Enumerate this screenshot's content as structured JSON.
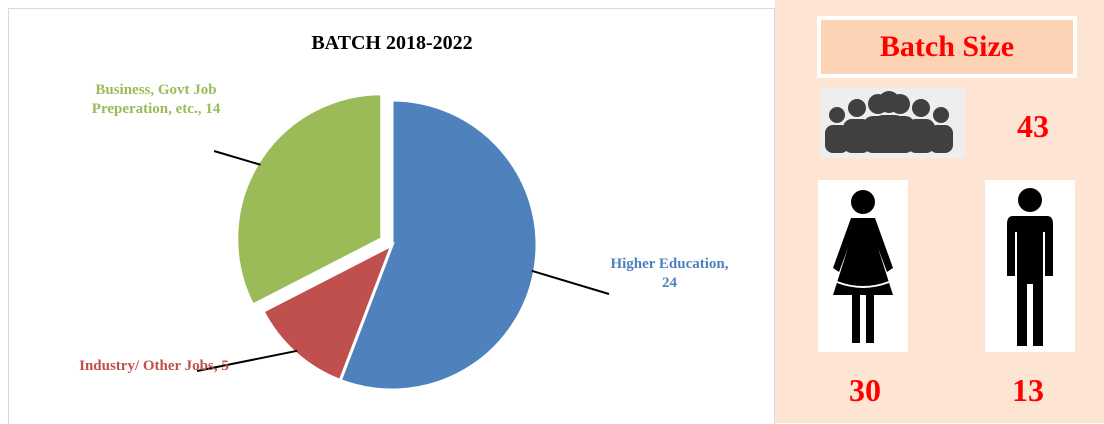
{
  "chart_data": {
    "type": "pie",
    "title": "BATCH 2018-2022",
    "categories": [
      "Higher Education,",
      "Industry/ Other Jobs,",
      "Business, Govt Job Preperation, etc.,"
    ],
    "values": [
      24,
      5,
      14
    ],
    "colors": [
      "#4f81bd",
      "#c0504d",
      "#9bbb59"
    ],
    "label_colors": [
      "#4f81bd",
      "#c0504d",
      "#9bbb59"
    ]
  },
  "batch_size": {
    "title": "Batch Size",
    "total": 43,
    "female": 30,
    "male": 13
  }
}
